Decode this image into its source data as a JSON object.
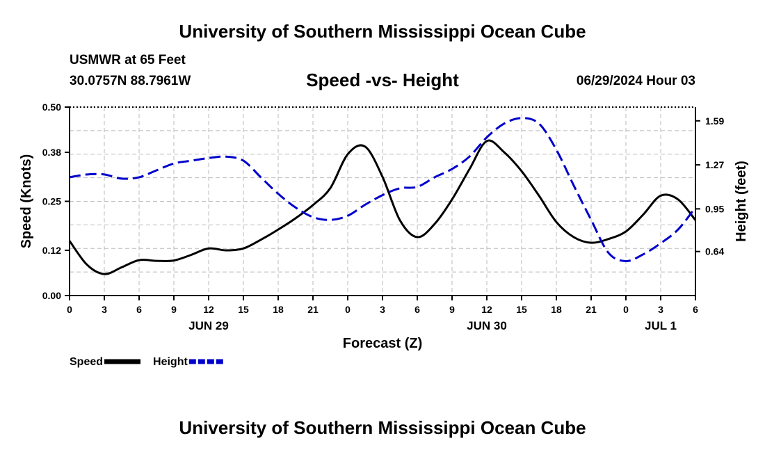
{
  "header": {
    "title_top": "University of Southern Mississippi Ocean Cube",
    "title_bottom": "University of Southern Mississippi Ocean Cube",
    "station": "USMWR at 65 Feet",
    "coords": "30.0757N  88.7961W",
    "datetime": "06/29/2024 Hour 03"
  },
  "chart_data": {
    "type": "line",
    "title": "Speed -vs- Height",
    "xlabel": "Forecast (Z)",
    "ylabel": "Speed (Knots)",
    "y2label": "Height (feet)",
    "xlim": [
      0,
      54
    ],
    "ylim": [
      0,
      0.5
    ],
    "y2lim": [
      0.32,
      1.69
    ],
    "x_ticks": [
      0,
      3,
      6,
      9,
      12,
      15,
      18,
      21,
      24,
      27,
      30,
      33,
      36,
      39,
      42,
      45,
      48,
      51,
      54
    ],
    "x_tick_labels": [
      "0",
      "3",
      "6",
      "9",
      "12",
      "15",
      "18",
      "21",
      "0",
      "3",
      "6",
      "9",
      "12",
      "15",
      "18",
      "21",
      "0",
      "3",
      "6"
    ],
    "y_tick_labels": [
      "0.00",
      "0.12",
      "0.25",
      "0.38",
      "0.50"
    ],
    "y2_tick_labels": [
      "0.64",
      "0.95",
      "1.27",
      "1.59"
    ],
    "date_labels": [
      {
        "label": "JUN 29",
        "x": 12
      },
      {
        "label": "JUN 30",
        "x": 36
      },
      {
        "label": "JUL 1",
        "x": 51
      }
    ],
    "grid": true,
    "series": [
      {
        "name": "Speed",
        "axis": "left",
        "color": "#000000",
        "x": [
          0,
          1.5,
          3,
          4.5,
          6,
          7.5,
          9,
          10.5,
          12,
          13.5,
          15,
          16.5,
          18,
          19.5,
          21,
          22.5,
          24,
          25.5,
          27,
          28.5,
          30,
          31.5,
          33,
          34.5,
          36,
          37.5,
          39,
          40.5,
          42,
          43.5,
          45,
          46.5,
          48,
          49.5,
          51,
          52.5,
          54
        ],
        "values": [
          0.145,
          0.082,
          0.057,
          0.075,
          0.094,
          0.092,
          0.093,
          0.108,
          0.125,
          0.12,
          0.125,
          0.148,
          0.175,
          0.205,
          0.24,
          0.285,
          0.375,
          0.395,
          0.315,
          0.2,
          0.155,
          0.19,
          0.255,
          0.335,
          0.41,
          0.38,
          0.33,
          0.265,
          0.195,
          0.155,
          0.14,
          0.15,
          0.17,
          0.215,
          0.265,
          0.255,
          0.2
        ]
      },
      {
        "name": "Height",
        "axis": "right",
        "color": "#0000cc",
        "x": [
          0,
          1.5,
          3,
          4.5,
          6,
          7.5,
          9,
          10.5,
          12,
          13.5,
          15,
          16.5,
          18,
          19.5,
          21,
          22.5,
          24,
          25.5,
          27,
          28.5,
          30,
          31.5,
          33,
          34.5,
          36,
          37.5,
          39,
          40.5,
          42,
          43.5,
          45,
          46.5,
          48,
          49.5,
          51,
          52.5,
          54
        ],
        "values": [
          1.18,
          1.2,
          1.2,
          1.17,
          1.18,
          1.23,
          1.28,
          1.3,
          1.32,
          1.33,
          1.3,
          1.18,
          1.06,
          0.96,
          0.89,
          0.87,
          0.9,
          0.98,
          1.05,
          1.1,
          1.11,
          1.18,
          1.24,
          1.33,
          1.47,
          1.57,
          1.61,
          1.57,
          1.38,
          1.12,
          0.87,
          0.63,
          0.57,
          0.62,
          0.7,
          0.8,
          0.96
        ]
      }
    ],
    "legend": [
      {
        "label": "Speed",
        "color": "#000000",
        "dash": false
      },
      {
        "label": "Height",
        "color": "#0000cc",
        "dash": true
      }
    ]
  }
}
